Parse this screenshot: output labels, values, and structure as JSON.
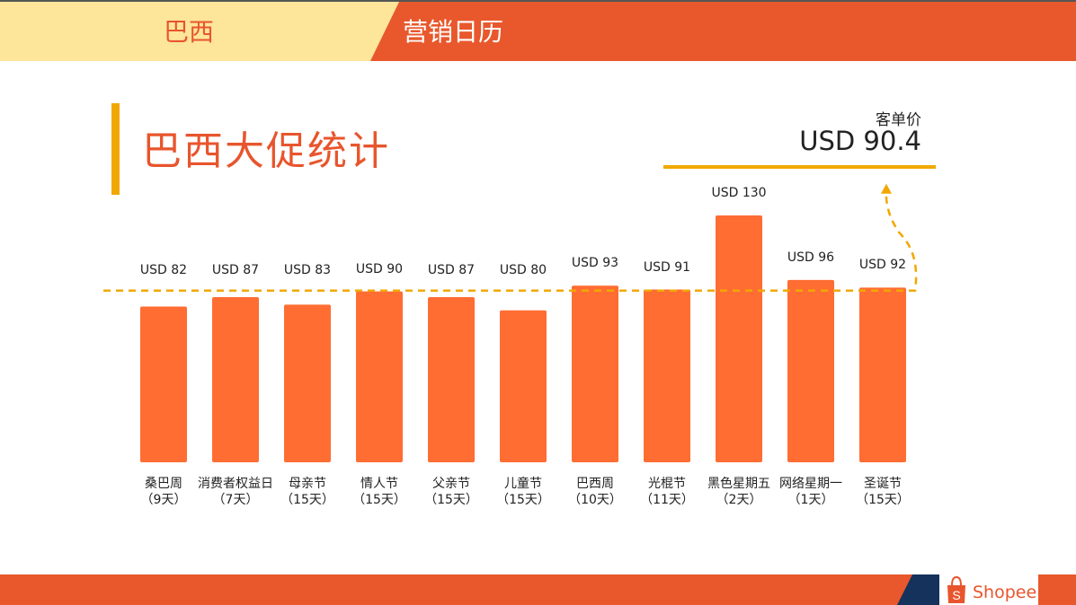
{
  "header": {
    "country": "巴西",
    "section": "营销日历"
  },
  "title": "巴西大促统计",
  "aov": {
    "label": "客单价",
    "value": "USD 90.4"
  },
  "brand": {
    "name": "Shopee"
  },
  "colors": {
    "bar": "#ff6d33",
    "accent": "#e8552d",
    "gold": "#f0a800",
    "header_yellow": "#fde59a",
    "navy": "#14325c"
  },
  "chart_data": {
    "type": "bar",
    "categories": [
      "桑巴周",
      "消费者权益日",
      "母亲节",
      "情人节",
      "父亲节",
      "儿童节",
      "巴西周",
      "光棍节",
      "黑色星期五",
      "网络星期一",
      "圣诞节"
    ],
    "durations": [
      "（9天）",
      "（7天）",
      "（15天）",
      "（15天）",
      "（15天）",
      "（15天）",
      "（10天）",
      "（11天）",
      "（2天）",
      "（1天）",
      "（15天）"
    ],
    "values": [
      82,
      87,
      83,
      90,
      87,
      80,
      93,
      91,
      130,
      96,
      92
    ],
    "labels": [
      "USD 82",
      "USD 87",
      "USD 83",
      "USD 90",
      "USD 87",
      "USD 80",
      "USD 93",
      "USD 91",
      "USD 130",
      "USD 96",
      "USD 92"
    ],
    "reference_line": {
      "value": 90.4,
      "style": "dashed"
    },
    "ylim": [
      0,
      130
    ],
    "grid": false
  }
}
